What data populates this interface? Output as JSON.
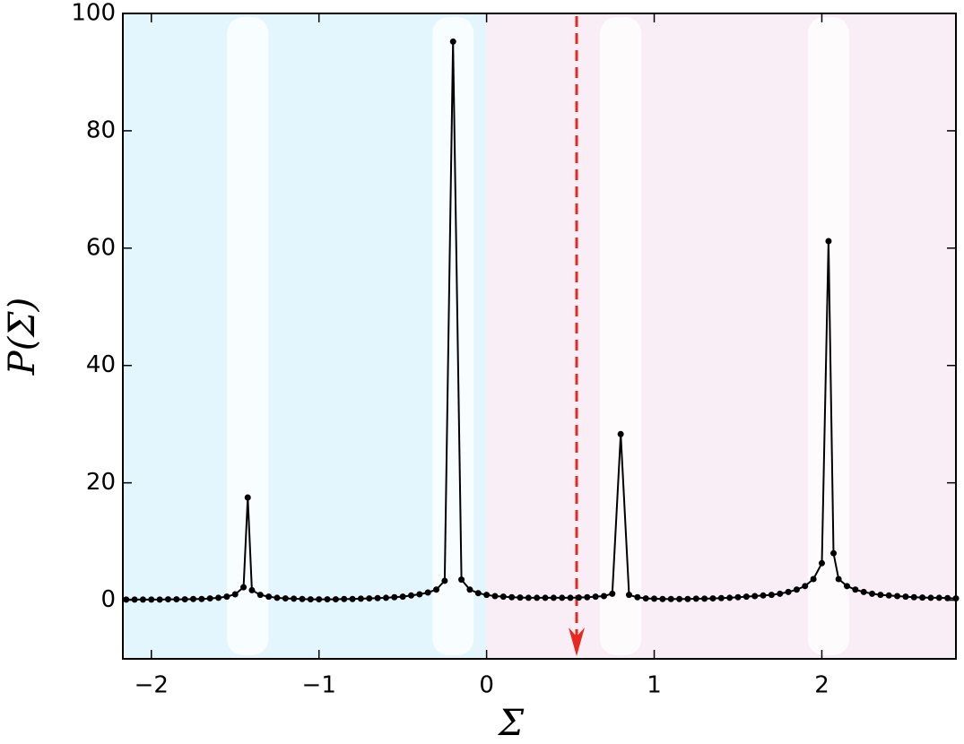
{
  "chart_data": {
    "type": "line",
    "xlabel": "Σ",
    "ylabel": "P(Σ)",
    "x": [
      -2.15,
      -2.1,
      -2.05,
      -2.0,
      -1.95,
      -1.9,
      -1.85,
      -1.8,
      -1.75,
      -1.7,
      -1.65,
      -1.6,
      -1.55,
      -1.5,
      -1.45,
      -1.425,
      -1.4,
      -1.35,
      -1.3,
      -1.25,
      -1.2,
      -1.15,
      -1.1,
      -1.05,
      -1.0,
      -0.95,
      -0.9,
      -0.85,
      -0.8,
      -0.75,
      -0.7,
      -0.65,
      -0.6,
      -0.55,
      -0.5,
      -0.45,
      -0.4,
      -0.35,
      -0.3,
      -0.25,
      -0.2,
      -0.15,
      -0.1,
      -0.05,
      0,
      0.05,
      0.1,
      0.15,
      0.2,
      0.25,
      0.3,
      0.35,
      0.4,
      0.45,
      0.5,
      0.55,
      0.6,
      0.65,
      0.7,
      0.75,
      0.8,
      0.85,
      0.9,
      0.95,
      1.0,
      1.05,
      1.1,
      1.15,
      1.2,
      1.25,
      1.3,
      1.35,
      1.4,
      1.45,
      1.5,
      1.55,
      1.6,
      1.65,
      1.7,
      1.75,
      1.8,
      1.85,
      1.9,
      1.95,
      2.0,
      2.04,
      2.07,
      2.1,
      2.15,
      2.2,
      2.25,
      2.3,
      2.35,
      2.4,
      2.45,
      2.5,
      2.55,
      2.6,
      2.65,
      2.7,
      2.75,
      2.8
    ],
    "values": [
      0.1,
      0.1,
      0.1,
      0.1,
      0.1,
      0.15,
      0.15,
      0.15,
      0.2,
      0.2,
      0.3,
      0.4,
      0.6,
      1.0,
      2.2,
      17.5,
      1.7,
      0.9,
      0.6,
      0.4,
      0.3,
      0.25,
      0.2,
      0.15,
      0.15,
      0.15,
      0.15,
      0.2,
      0.2,
      0.25,
      0.3,
      0.35,
      0.4,
      0.5,
      0.6,
      0.8,
      1.0,
      1.3,
      1.8,
      3.3,
      95.2,
      3.5,
      1.8,
      1.2,
      0.9,
      0.7,
      0.6,
      0.5,
      0.45,
      0.4,
      0.4,
      0.4,
      0.4,
      0.4,
      0.4,
      0.45,
      0.5,
      0.6,
      0.7,
      1.1,
      28.3,
      0.9,
      0.5,
      0.3,
      0.25,
      0.2,
      0.2,
      0.2,
      0.2,
      0.25,
      0.25,
      0.3,
      0.35,
      0.4,
      0.5,
      0.6,
      0.7,
      0.8,
      0.9,
      1.1,
      1.4,
      1.8,
      2.4,
      3.6,
      6.3,
      61.2,
      8.0,
      3.6,
      2.4,
      1.8,
      1.4,
      1.1,
      0.9,
      0.8,
      0.7,
      0.6,
      0.5,
      0.45,
      0.4,
      0.4,
      0.35,
      0.3
    ],
    "color": "#000000",
    "xlim": [
      -2.17,
      2.8
    ],
    "xticks": [
      {
        "value": -2,
        "label": "−2"
      },
      {
        "value": -1,
        "label": "−1"
      },
      0,
      1,
      2
    ],
    "ylim": [
      -10,
      100
    ],
    "yticks": [
      0,
      20,
      40,
      60,
      80,
      100
    ]
  }
}
